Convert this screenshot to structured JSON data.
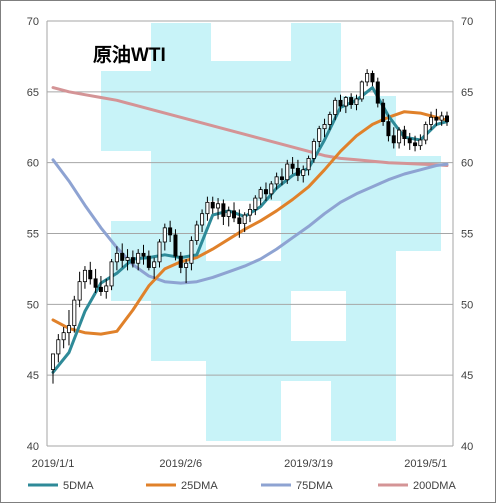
{
  "chart_data": {
    "type": "line",
    "title": "原油WTI",
    "xlabel": "",
    "ylabel": "",
    "ylim": [
      40,
      70
    ],
    "y_ticks": [
      40,
      45,
      50,
      55,
      60,
      65,
      70
    ],
    "x_tick_labels": [
      "2019/1/1",
      "2019/2/6",
      "2019/3/19",
      "2019/5/1"
    ],
    "grid": "horizontal",
    "legend_position": "bottom",
    "right_axis": true,
    "candles_ohlc": [
      [
        45.4,
        46.5,
        44.4,
        46.5
      ],
      [
        46.5,
        47.9,
        45.9,
        47.5
      ],
      [
        47.5,
        48.4,
        46.9,
        48.0
      ],
      [
        48.0,
        49.6,
        47.1,
        48.5
      ],
      [
        48.5,
        50.6,
        48.0,
        50.3
      ],
      [
        50.3,
        52.3,
        49.8,
        51.6
      ],
      [
        51.6,
        52.7,
        51.1,
        52.4
      ],
      [
        52.4,
        53.0,
        51.4,
        51.8
      ],
      [
        51.8,
        52.5,
        50.8,
        51.2
      ],
      [
        51.2,
        52.0,
        50.6,
        50.9
      ],
      [
        50.9,
        51.8,
        50.4,
        51.3
      ],
      [
        51.3,
        53.2,
        51.0,
        53.0
      ],
      [
        53.0,
        54.1,
        52.4,
        53.6
      ],
      [
        53.6,
        54.3,
        52.6,
        53.1
      ],
      [
        53.1,
        53.9,
        52.4,
        53.3
      ],
      [
        53.3,
        53.8,
        52.6,
        52.9
      ],
      [
        52.9,
        53.9,
        52.4,
        53.6
      ],
      [
        53.6,
        54.2,
        52.8,
        53.4
      ],
      [
        53.4,
        53.8,
        52.4,
        52.6
      ],
      [
        52.6,
        53.3,
        51.8,
        53.0
      ],
      [
        53.0,
        54.6,
        52.6,
        54.4
      ],
      [
        54.4,
        55.7,
        53.8,
        55.4
      ],
      [
        55.4,
        55.9,
        54.4,
        54.9
      ],
      [
        54.9,
        55.3,
        53.1,
        53.4
      ],
      [
        53.4,
        53.7,
        52.2,
        52.6
      ],
      [
        52.6,
        53.2,
        51.5,
        52.9
      ],
      [
        52.9,
        54.8,
        52.4,
        54.5
      ],
      [
        54.5,
        55.9,
        54.2,
        55.6
      ],
      [
        55.6,
        56.7,
        55.1,
        56.4
      ],
      [
        56.4,
        57.6,
        55.9,
        57.2
      ],
      [
        57.2,
        57.6,
        56.4,
        56.8
      ],
      [
        56.8,
        57.5,
        56.0,
        57.1
      ],
      [
        57.1,
        57.4,
        55.6,
        56.2
      ],
      [
        56.2,
        56.9,
        55.5,
        56.6
      ],
      [
        56.6,
        57.2,
        55.8,
        56.1
      ],
      [
        56.1,
        56.7,
        54.7,
        55.7
      ],
      [
        55.7,
        56.5,
        55.1,
        56.3
      ],
      [
        56.3,
        57.1,
        55.8,
        56.7
      ],
      [
        56.7,
        57.7,
        56.3,
        57.5
      ],
      [
        57.5,
        58.3,
        57.0,
        58.1
      ],
      [
        58.1,
        58.6,
        57.3,
        57.8
      ],
      [
        57.8,
        58.7,
        57.4,
        58.5
      ],
      [
        58.5,
        59.3,
        58.1,
        59.0
      ],
      [
        59.0,
        59.6,
        58.4,
        58.8
      ],
      [
        58.8,
        60.2,
        58.5,
        59.9
      ],
      [
        59.9,
        60.4,
        59.2,
        59.6
      ],
      [
        59.6,
        60.2,
        58.7,
        59.1
      ],
      [
        59.1,
        59.8,
        58.6,
        59.5
      ],
      [
        59.5,
        60.5,
        59.1,
        60.3
      ],
      [
        60.3,
        61.7,
        60.0,
        61.5
      ],
      [
        61.5,
        62.6,
        61.1,
        62.4
      ],
      [
        62.4,
        63.1,
        61.8,
        62.7
      ],
      [
        62.7,
        63.6,
        62.3,
        63.4
      ],
      [
        63.4,
        64.6,
        63.0,
        64.4
      ],
      [
        64.4,
        64.8,
        63.6,
        64.0
      ],
      [
        64.0,
        64.7,
        63.5,
        64.6
      ],
      [
        64.6,
        64.9,
        63.8,
        64.1
      ],
      [
        64.1,
        64.8,
        63.7,
        64.5
      ],
      [
        64.5,
        65.8,
        64.3,
        65.7
      ],
      [
        65.7,
        66.6,
        65.4,
        66.3
      ],
      [
        66.3,
        66.5,
        65.4,
        65.7
      ],
      [
        65.7,
        66.0,
        63.9,
        64.2
      ],
      [
        64.2,
        64.5,
        62.6,
        62.9
      ],
      [
        62.9,
        63.4,
        61.5,
        61.9
      ],
      [
        61.9,
        62.5,
        61.0,
        61.4
      ],
      [
        61.4,
        62.5,
        61.0,
        62.3
      ],
      [
        62.3,
        62.6,
        61.2,
        61.7
      ],
      [
        61.7,
        62.1,
        60.9,
        61.4
      ],
      [
        61.4,
        61.9,
        60.8,
        61.2
      ],
      [
        61.2,
        62.0,
        60.9,
        61.6
      ],
      [
        61.6,
        62.9,
        61.3,
        62.7
      ],
      [
        62.7,
        63.6,
        62.3,
        63.2
      ],
      [
        63.2,
        63.8,
        62.6,
        63.0
      ],
      [
        63.0,
        63.6,
        62.6,
        63.3
      ],
      [
        63.3,
        63.6,
        62.6,
        62.9
      ]
    ],
    "series": [
      {
        "name": "5DMA",
        "color": "#2e8a98",
        "x": [
          0,
          3,
          6,
          9,
          12,
          15,
          18,
          21,
          24,
          27,
          30,
          33,
          36,
          39,
          42,
          45,
          48,
          51,
          54,
          57,
          60,
          63,
          66,
          69,
          72,
          74
        ],
        "values": [
          45.2,
          46.6,
          49.5,
          51.5,
          52.2,
          53.2,
          53.3,
          53.5,
          53.3,
          53.5,
          56.3,
          56.6,
          56.2,
          56.9,
          58.2,
          59.1,
          59.6,
          61.6,
          63.9,
          64.4,
          65.3,
          63.3,
          61.8,
          61.6,
          62.7,
          62.9
        ]
      },
      {
        "name": "25DMA",
        "color": "#e0812a",
        "x": [
          0,
          3,
          6,
          9,
          12,
          15,
          18,
          21,
          24,
          27,
          30,
          33,
          36,
          39,
          42,
          45,
          48,
          51,
          54,
          57,
          60,
          63,
          66,
          69,
          72,
          74
        ],
        "values": [
          48.9,
          48.3,
          48.0,
          47.9,
          48.1,
          49.6,
          51.3,
          52.5,
          53.0,
          53.3,
          53.9,
          54.6,
          55.3,
          55.9,
          56.6,
          57.4,
          58.3,
          59.5,
          60.8,
          61.9,
          62.7,
          63.2,
          63.6,
          63.5,
          63.2,
          63.0
        ]
      },
      {
        "name": "75DMA",
        "color": "#8ea3d2",
        "x": [
          0,
          3,
          6,
          9,
          12,
          15,
          18,
          21,
          24,
          27,
          30,
          33,
          36,
          39,
          42,
          45,
          48,
          51,
          54,
          57,
          60,
          63,
          66,
          69,
          72,
          74
        ],
        "values": [
          60.2,
          58.7,
          57.0,
          55.4,
          54.0,
          52.8,
          52.0,
          51.6,
          51.5,
          51.6,
          51.9,
          52.3,
          52.7,
          53.2,
          53.9,
          54.7,
          55.5,
          56.4,
          57.2,
          57.8,
          58.3,
          58.8,
          59.2,
          59.5,
          59.8,
          59.9
        ]
      },
      {
        "name": "200DMA",
        "color": "#d49496",
        "x": [
          0,
          3,
          6,
          9,
          12,
          15,
          18,
          21,
          24,
          27,
          30,
          33,
          36,
          39,
          42,
          45,
          48,
          51,
          54,
          57,
          60,
          63,
          66,
          69,
          72,
          74
        ],
        "values": [
          65.3,
          65.0,
          64.8,
          64.6,
          64.4,
          64.1,
          63.8,
          63.5,
          63.2,
          62.9,
          62.6,
          62.3,
          62.0,
          61.7,
          61.4,
          61.1,
          60.8,
          60.5,
          60.3,
          60.2,
          60.1,
          60.0,
          59.95,
          59.9,
          59.85,
          59.8
        ]
      }
    ]
  }
}
